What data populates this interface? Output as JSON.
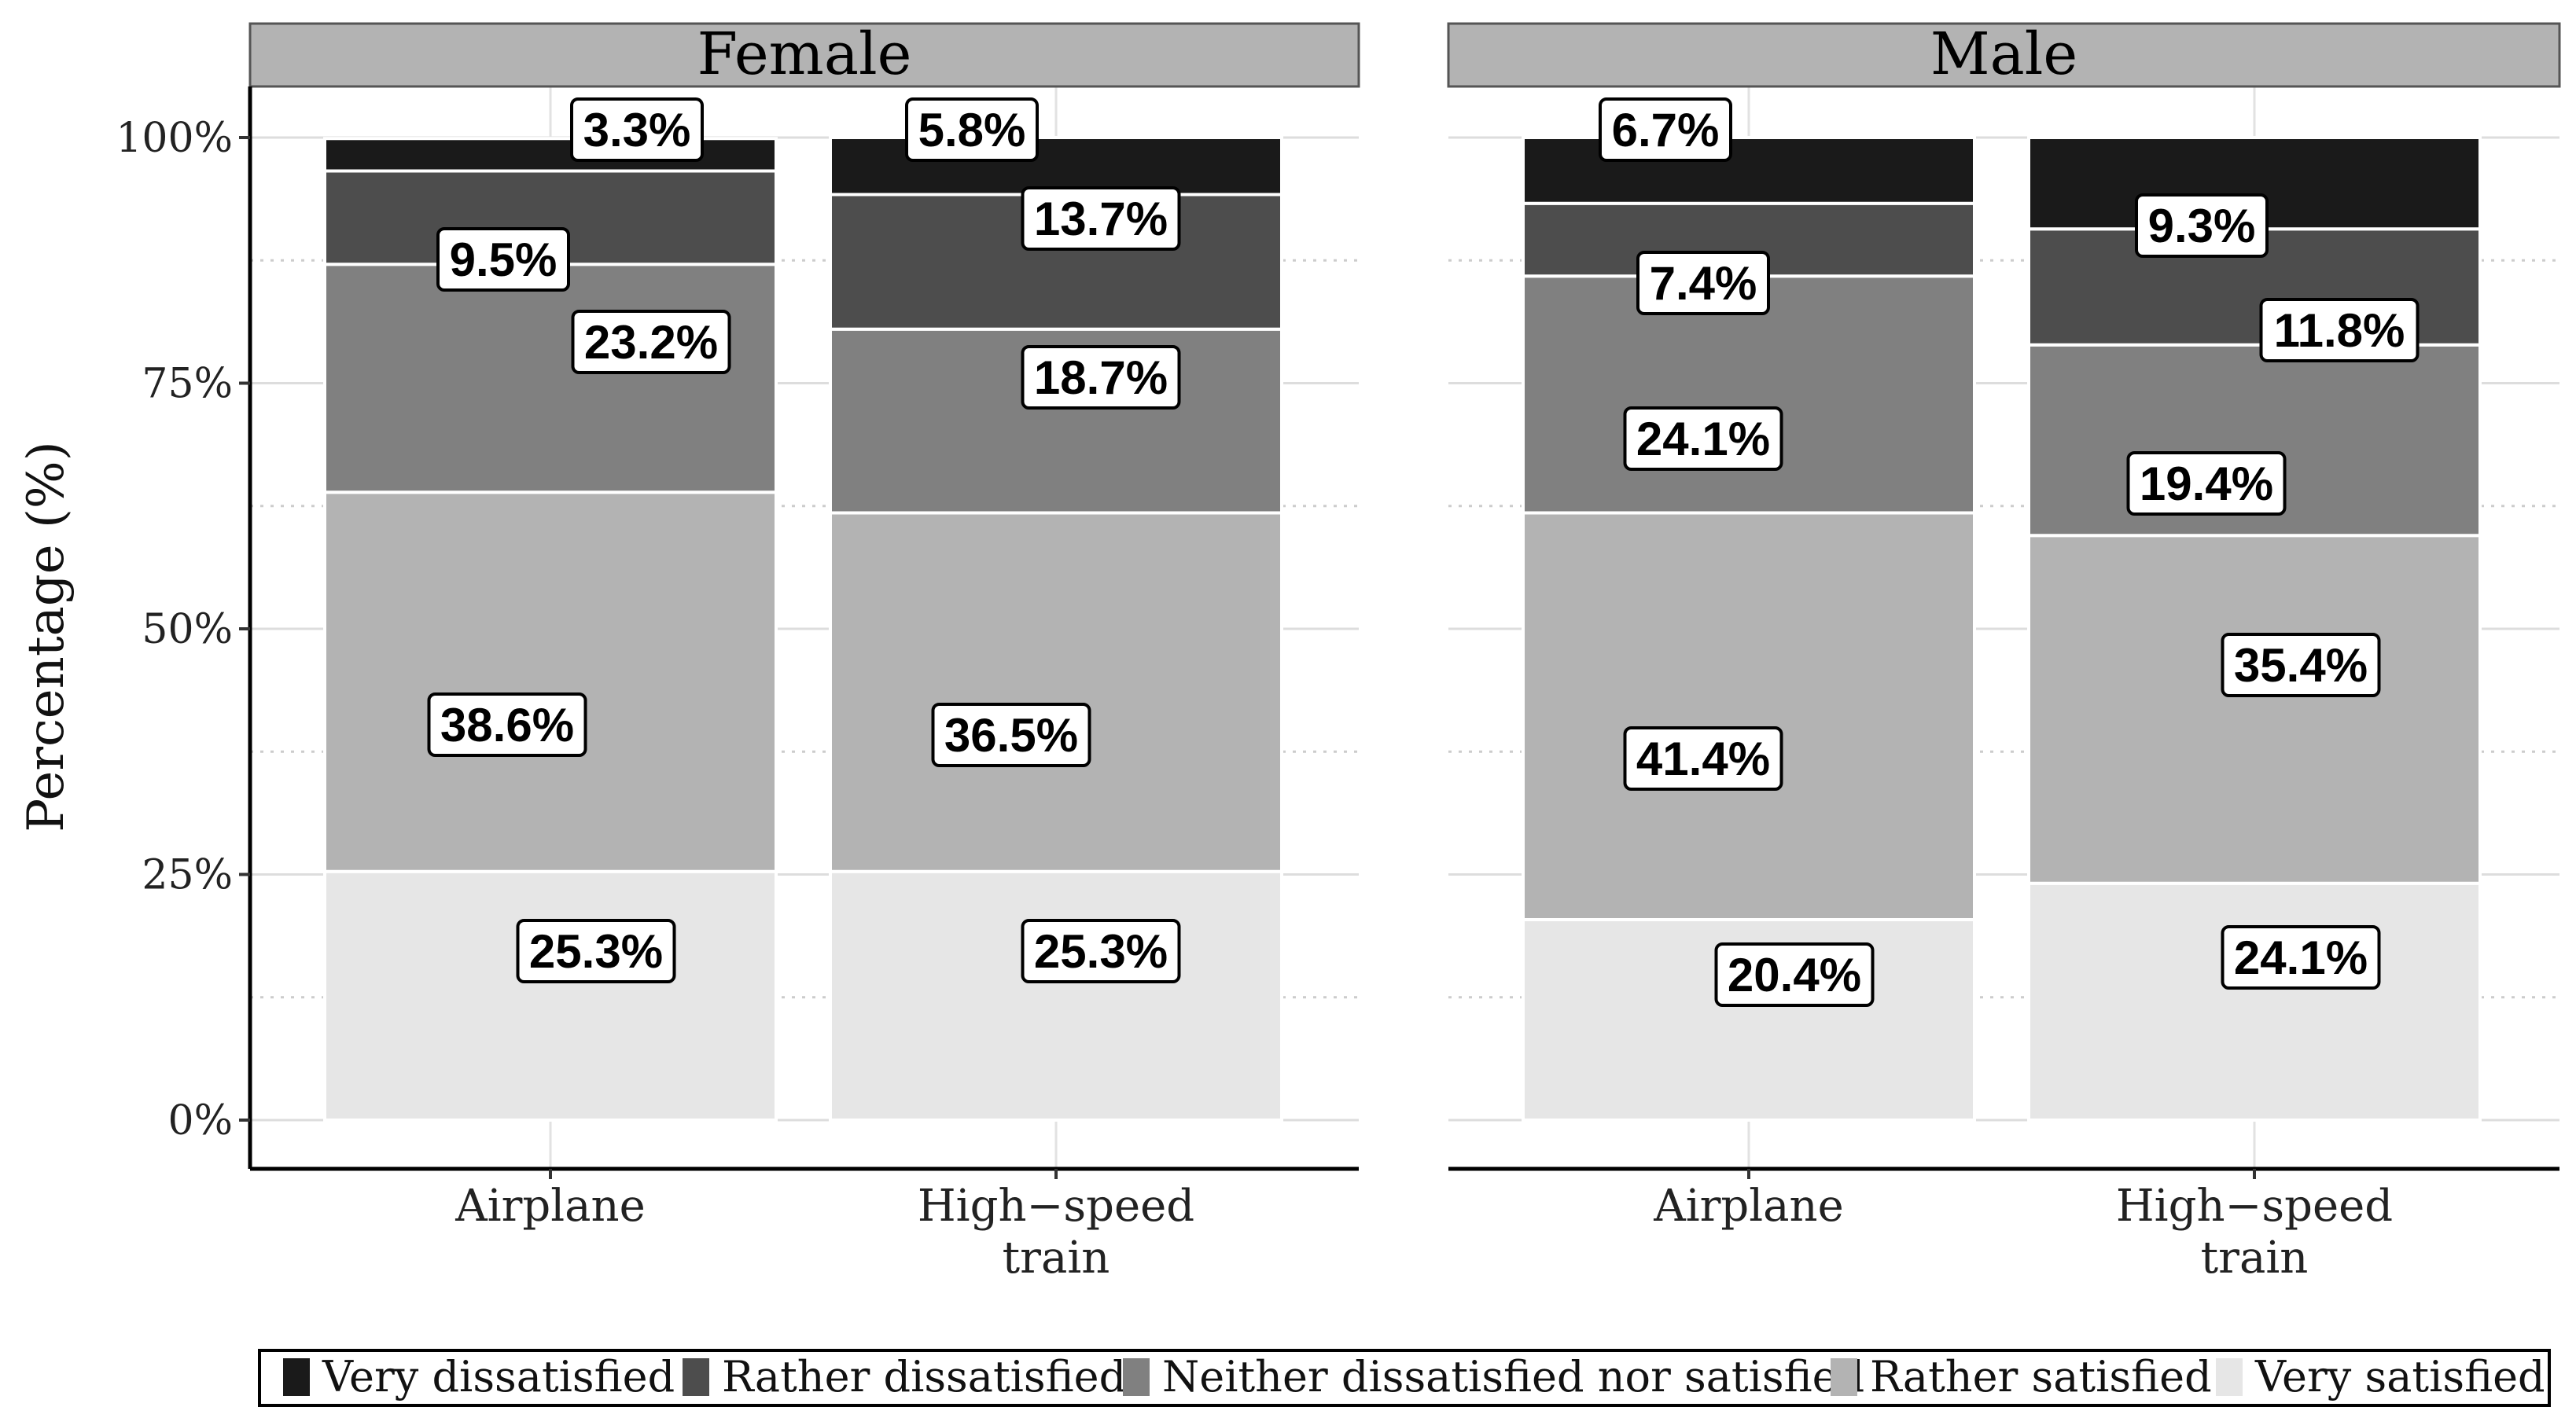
{
  "chart_data": {
    "type": "bar",
    "stacked": true,
    "ylabel": "Percentage (%)",
    "xlabel": "",
    "ylim": [
      0,
      100
    ],
    "y_ticks": [
      "0%",
      "25%",
      "50%",
      "75%",
      "100%"
    ],
    "legend_position": "bottom",
    "categories": [
      "Airplane",
      "High−speed train"
    ],
    "category_lines": [
      [
        "Airplane"
      ],
      [
        "High−speed",
        "train"
      ]
    ],
    "levels": [
      "Very dissatisfied",
      "Rather dissatisfied",
      "Neither dissatisfied nor satisfied",
      "Rather satisfied",
      "Very satisfied"
    ],
    "colors": {
      "Very dissatisfied": "#1a1a1a",
      "Rather dissatisfied": "#4d4d4d",
      "Neither dissatisfied nor satisfied": "#808080",
      "Rather satisfied": "#b3b3b3",
      "Very satisfied": "#e6e6e6"
    },
    "panels": [
      {
        "name": "Female",
        "bars": [
          {
            "category": "Airplane",
            "values": {
              "Very dissatisfied": 3.3,
              "Rather dissatisfied": 9.5,
              "Neither dissatisfied nor satisfied": 23.2,
              "Rather satisfied": 38.6,
              "Very satisfied": 25.3
            }
          },
          {
            "category": "High−speed train",
            "values": {
              "Very dissatisfied": 5.8,
              "Rather dissatisfied": 13.7,
              "Neither dissatisfied nor satisfied": 18.7,
              "Rather satisfied": 36.5,
              "Very satisfied": 25.3
            }
          }
        ]
      },
      {
        "name": "Male",
        "bars": [
          {
            "category": "Airplane",
            "values": {
              "Very dissatisfied": 6.7,
              "Rather dissatisfied": 7.4,
              "Neither dissatisfied nor satisfied": 24.1,
              "Rather satisfied": 41.4,
              "Very satisfied": 20.4
            }
          },
          {
            "category": "High−speed train",
            "values": {
              "Very dissatisfied": 9.3,
              "Rather dissatisfied": 11.8,
              "Neither dissatisfied nor satisfied": 19.4,
              "Rather satisfied": 35.4,
              "Very satisfied": 24.1
            }
          }
        ]
      }
    ]
  }
}
